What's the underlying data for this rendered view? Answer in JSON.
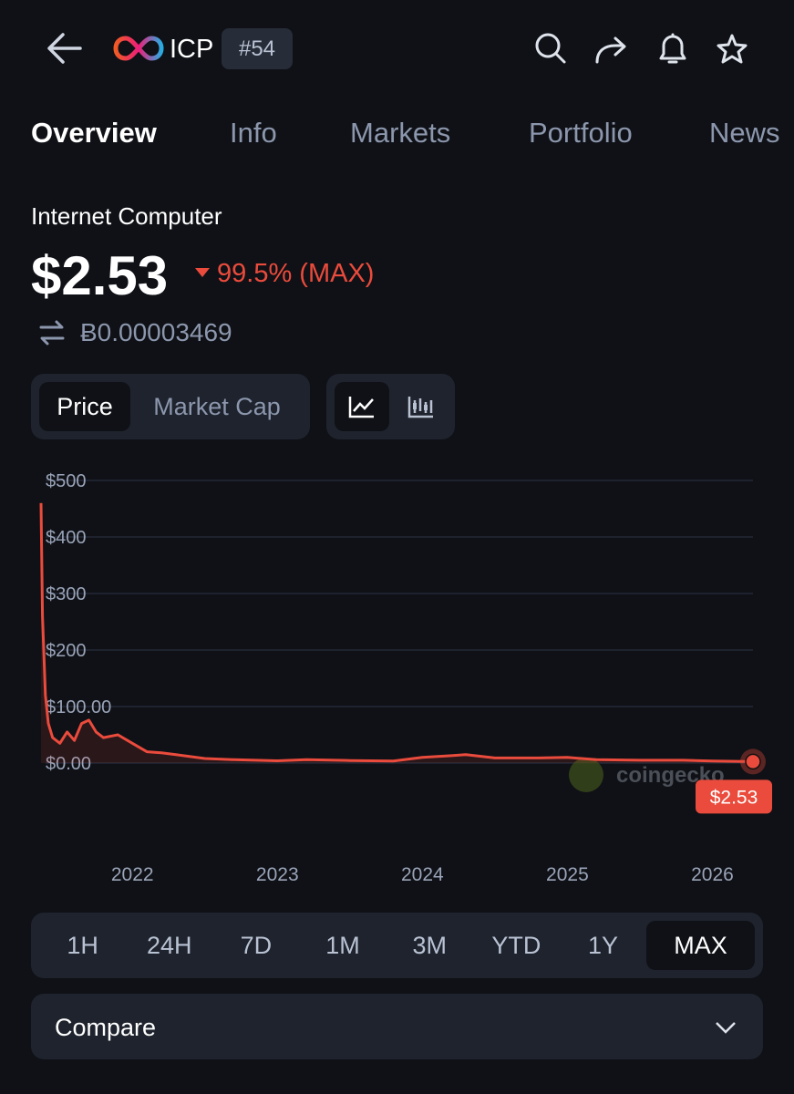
{
  "header": {
    "symbol": "ICP",
    "rank": "#54"
  },
  "tabs": [
    "Overview",
    "Info",
    "Markets",
    "Portfolio",
    "News"
  ],
  "coin": {
    "name": "Internet Computer",
    "price": "$2.53",
    "change": "99.5% (MAX)",
    "btc_price": "Ƀ0.00003469"
  },
  "metrics": [
    "Price",
    "Market Cap"
  ],
  "chart_data": {
    "type": "line",
    "x": [
      2021.37,
      2021.38,
      2021.4,
      2021.42,
      2021.45,
      2021.5,
      2021.55,
      2021.6,
      2021.65,
      2021.7,
      2021.75,
      2021.8,
      2021.9,
      2022.0,
      2022.1,
      2022.2,
      2022.3,
      2022.5,
      2022.7,
      2023.0,
      2023.2,
      2023.5,
      2023.8,
      2024.0,
      2024.2,
      2024.3,
      2024.5,
      2024.8,
      2025.0,
      2025.2,
      2025.5,
      2025.8,
      2026.0,
      2026.28
    ],
    "series": [
      {
        "name": "Price",
        "color": "#ea4b3c",
        "values": [
          460,
          260,
          120,
          70,
          45,
          35,
          55,
          40,
          70,
          76,
          55,
          45,
          50,
          35,
          20,
          18,
          15,
          8,
          6,
          4,
          6,
          4.5,
          3.5,
          10,
          13,
          15,
          9,
          9,
          10,
          6,
          5,
          5,
          3.5,
          2.53
        ]
      }
    ],
    "xlim": [
      2021.37,
      2026.28
    ],
    "ylim": [
      0,
      500
    ],
    "xticks": [
      2022,
      2023,
      2024,
      2025,
      2026
    ],
    "yticks": [
      {
        "value": 0,
        "label": "$0.00"
      },
      {
        "value": 100,
        "label": "$100.00"
      },
      {
        "value": 200,
        "label": "$200"
      },
      {
        "value": 300,
        "label": "$300"
      },
      {
        "value": 400,
        "label": "$400"
      },
      {
        "value": 500,
        "label": "$500"
      }
    ],
    "grid": true,
    "last_label": "$2.53",
    "watermark": "coingecko"
  },
  "ranges": [
    "1H",
    "24H",
    "7D",
    "1M",
    "3M",
    "YTD",
    "1Y",
    "MAX"
  ],
  "compare": "Compare"
}
